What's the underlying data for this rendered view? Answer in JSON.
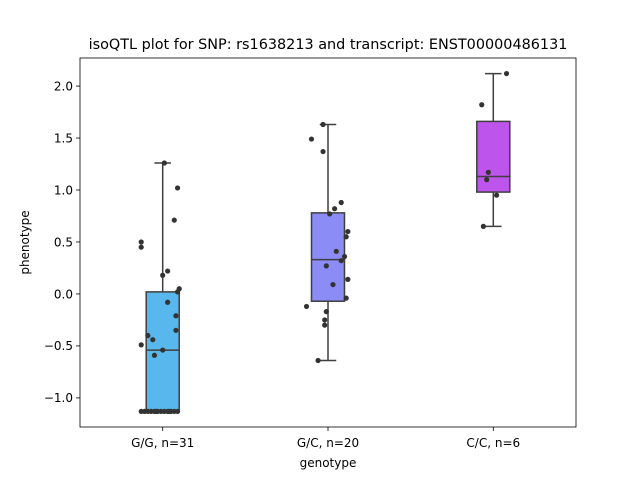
{
  "chart_data": {
    "type": "box",
    "title": "isoQTL plot for SNP: rs1638213 and transcript: ENST00000486131",
    "xlabel": "genotype",
    "ylabel": "phenotype",
    "ylim": [
      -1.28,
      2.27
    ],
    "yticks": [
      -1.0,
      -0.5,
      0.0,
      0.5,
      1.0,
      1.5,
      2.0
    ],
    "ytick_labels": [
      "−1.0",
      "−0.5",
      "0.0",
      "0.5",
      "1.0",
      "1.5",
      "2.0"
    ],
    "grid": false,
    "categories": [
      "G/G, n=31",
      "G/C, n=20",
      "C/C, n=6"
    ],
    "boxes": [
      {
        "category": "G/G, n=31",
        "color": "#58b7ec",
        "whisker_low": -1.13,
        "q1": -1.13,
        "median": -0.54,
        "q3": 0.02,
        "whisker_high": 1.26
      },
      {
        "category": "G/C, n=20",
        "color": "#8c8cf6",
        "whisker_low": -0.64,
        "q1": -0.07,
        "median": 0.33,
        "q3": 0.78,
        "whisker_high": 1.63
      },
      {
        "category": "C/C, n=6",
        "color": "#bd54eb",
        "whisker_low": 0.65,
        "q1": 0.98,
        "median": 1.13,
        "q3": 1.66,
        "whisker_high": 2.12
      }
    ],
    "points": [
      {
        "category": 0,
        "jitter": 0.01,
        "y": 1.26
      },
      {
        "category": 0,
        "jitter": 0.09,
        "y": 1.02
      },
      {
        "category": 0,
        "jitter": 0.07,
        "y": 0.71
      },
      {
        "category": 0,
        "jitter": -0.13,
        "y": 0.5
      },
      {
        "category": 0,
        "jitter": -0.13,
        "y": 0.45
      },
      {
        "category": 0,
        "jitter": 0.03,
        "y": 0.22
      },
      {
        "category": 0,
        "jitter": 0.0,
        "y": 0.18
      },
      {
        "category": 0,
        "jitter": 0.1,
        "y": 0.05
      },
      {
        "category": 0,
        "jitter": 0.09,
        "y": 0.02
      },
      {
        "category": 0,
        "jitter": 0.03,
        "y": -0.08
      },
      {
        "category": 0,
        "jitter": 0.08,
        "y": -0.21
      },
      {
        "category": 0,
        "jitter": 0.08,
        "y": -0.35
      },
      {
        "category": 0,
        "jitter": -0.09,
        "y": -0.4
      },
      {
        "category": 0,
        "jitter": -0.06,
        "y": -0.44
      },
      {
        "category": 0,
        "jitter": -0.13,
        "y": -0.49
      },
      {
        "category": 0,
        "jitter": 0.0,
        "y": -0.54
      },
      {
        "category": 0,
        "jitter": -0.05,
        "y": -0.59
      },
      {
        "category": 0,
        "jitter": -0.13,
        "y": -1.13
      },
      {
        "category": 0,
        "jitter": -0.11,
        "y": -1.13
      },
      {
        "category": 0,
        "jitter": -0.09,
        "y": -1.13
      },
      {
        "category": 0,
        "jitter": -0.07,
        "y": -1.13
      },
      {
        "category": 0,
        "jitter": -0.05,
        "y": -1.13
      },
      {
        "category": 0,
        "jitter": -0.03,
        "y": -1.13
      },
      {
        "category": 0,
        "jitter": -0.01,
        "y": -1.13
      },
      {
        "category": 0,
        "jitter": 0.01,
        "y": -1.13
      },
      {
        "category": 0,
        "jitter": 0.03,
        "y": -1.13
      },
      {
        "category": 0,
        "jitter": 0.05,
        "y": -1.13
      },
      {
        "category": 0,
        "jitter": 0.07,
        "y": -1.13
      },
      {
        "category": 0,
        "jitter": 0.09,
        "y": -1.13
      },
      {
        "category": 0,
        "jitter": -0.04,
        "y": -1.13
      },
      {
        "category": 0,
        "jitter": 0.04,
        "y": -1.13
      },
      {
        "category": 1,
        "jitter": -0.03,
        "y": 1.63
      },
      {
        "category": 1,
        "jitter": -0.1,
        "y": 1.49
      },
      {
        "category": 1,
        "jitter": -0.03,
        "y": 1.37
      },
      {
        "category": 1,
        "jitter": 0.08,
        "y": 0.88
      },
      {
        "category": 1,
        "jitter": 0.04,
        "y": 0.82
      },
      {
        "category": 1,
        "jitter": 0.01,
        "y": 0.77
      },
      {
        "category": 1,
        "jitter": 0.12,
        "y": 0.6
      },
      {
        "category": 1,
        "jitter": 0.11,
        "y": 0.55
      },
      {
        "category": 1,
        "jitter": 0.05,
        "y": 0.41
      },
      {
        "category": 1,
        "jitter": 0.1,
        "y": 0.36
      },
      {
        "category": 1,
        "jitter": 0.08,
        "y": 0.32
      },
      {
        "category": 1,
        "jitter": -0.01,
        "y": 0.27
      },
      {
        "category": 1,
        "jitter": 0.12,
        "y": 0.14
      },
      {
        "category": 1,
        "jitter": 0.03,
        "y": 0.09
      },
      {
        "category": 1,
        "jitter": 0.11,
        "y": -0.04
      },
      {
        "category": 1,
        "jitter": -0.13,
        "y": -0.12
      },
      {
        "category": 1,
        "jitter": -0.01,
        "y": -0.17
      },
      {
        "category": 1,
        "jitter": -0.02,
        "y": -0.25
      },
      {
        "category": 1,
        "jitter": -0.02,
        "y": -0.3
      },
      {
        "category": 1,
        "jitter": -0.06,
        "y": -0.64
      },
      {
        "category": 2,
        "jitter": 0.08,
        "y": 2.12
      },
      {
        "category": 2,
        "jitter": -0.07,
        "y": 1.82
      },
      {
        "category": 2,
        "jitter": -0.03,
        "y": 1.17
      },
      {
        "category": 2,
        "jitter": -0.04,
        "y": 1.1
      },
      {
        "category": 2,
        "jitter": 0.02,
        "y": 0.95
      },
      {
        "category": 2,
        "jitter": -0.06,
        "y": 0.65
      }
    ]
  }
}
